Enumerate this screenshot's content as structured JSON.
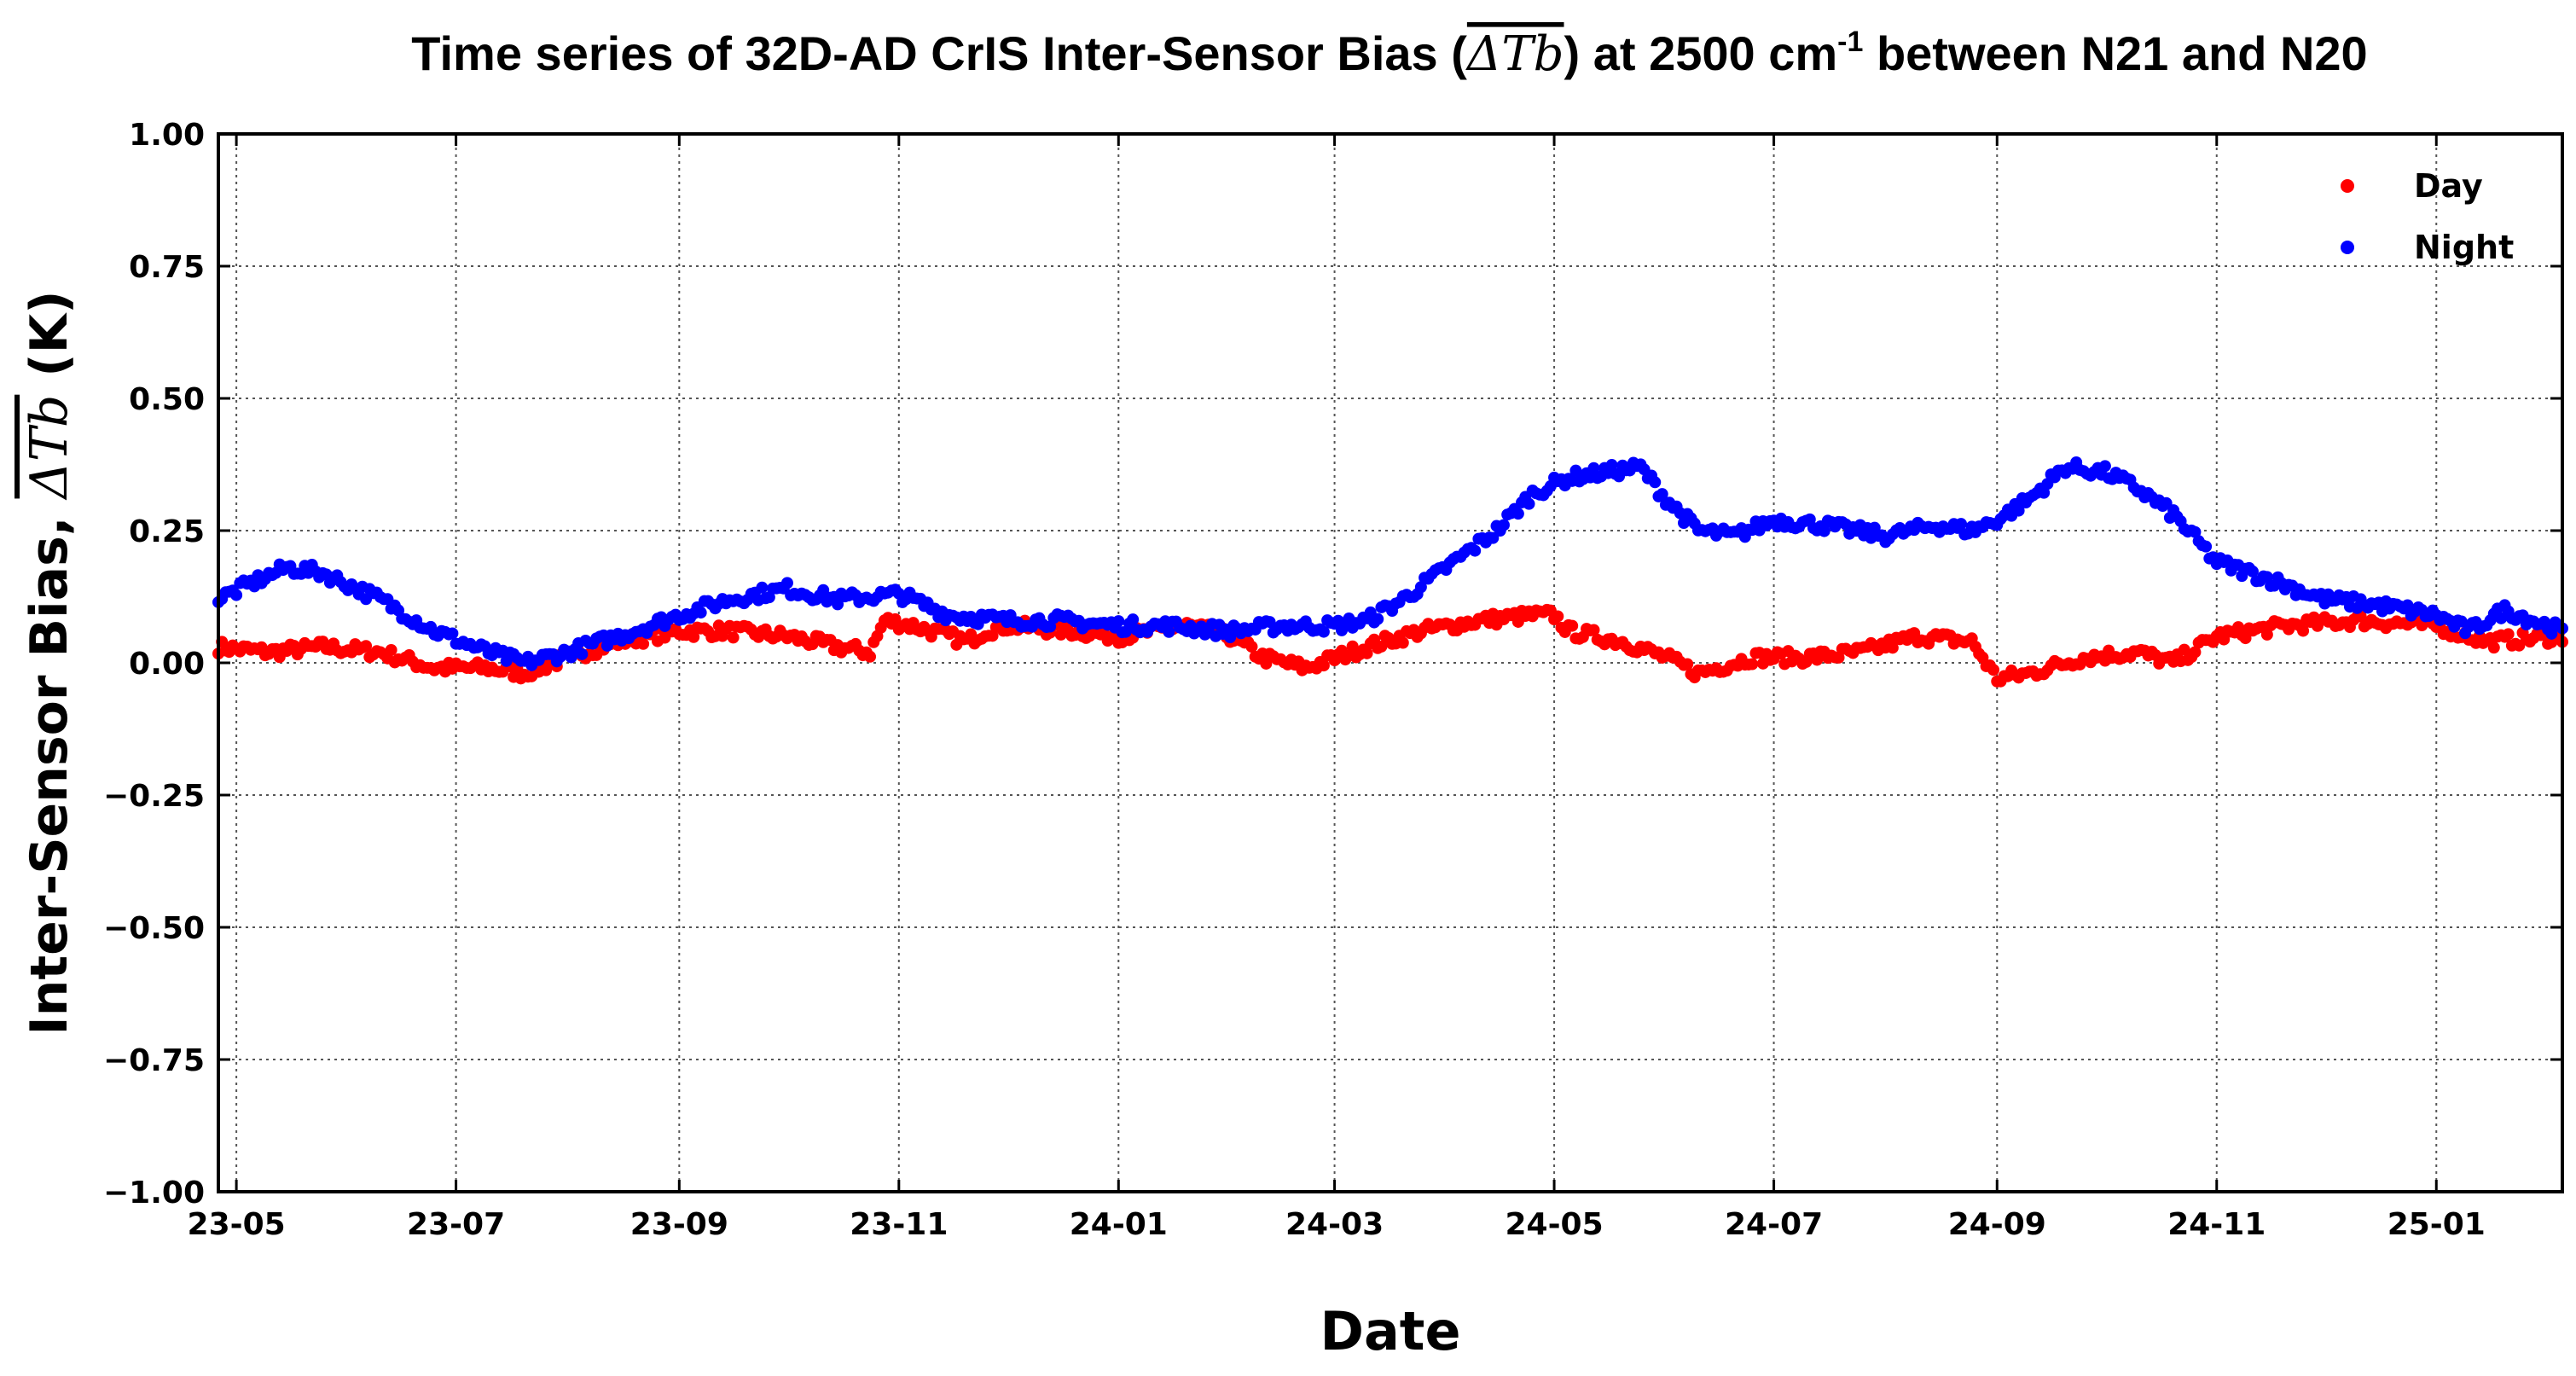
{
  "chart_data": {
    "type": "scatter",
    "title": {
      "prefix": "Time series of 32D-AD CrIS Inter-Sensor Bias (",
      "symbol": "ΔTb",
      "suffix_a": ") at 2500 cm",
      "superscript": "-1",
      "suffix_b": " between N21 and N20"
    },
    "xlabel": "Date",
    "ylabel": {
      "prefix": "Inter-Sensor Bias, ",
      "symbol": "ΔTb",
      "suffix": " (K)"
    },
    "x_range": [
      "2023-04-26",
      "2025-02-05"
    ],
    "ylim": [
      -1.0,
      1.0
    ],
    "x_ticks": [
      {
        "date": "2023-05-01",
        "label": "23-05"
      },
      {
        "date": "2023-07-01",
        "label": "23-07"
      },
      {
        "date": "2023-09-01",
        "label": "23-09"
      },
      {
        "date": "2023-11-01",
        "label": "23-11"
      },
      {
        "date": "2024-01-01",
        "label": "24-01"
      },
      {
        "date": "2024-03-01",
        "label": "24-03"
      },
      {
        "date": "2024-05-01",
        "label": "24-05"
      },
      {
        "date": "2024-07-01",
        "label": "24-07"
      },
      {
        "date": "2024-09-01",
        "label": "24-09"
      },
      {
        "date": "2024-11-01",
        "label": "24-11"
      },
      {
        "date": "2025-01-01",
        "label": "25-01"
      }
    ],
    "y_ticks": [
      {
        "value": 1.0,
        "label": "1.00"
      },
      {
        "value": 0.75,
        "label": "0.75"
      },
      {
        "value": 0.5,
        "label": "0.50"
      },
      {
        "value": 0.25,
        "label": "0.25"
      },
      {
        "value": 0.0,
        "label": "0.00"
      },
      {
        "value": -0.25,
        "label": "−0.25"
      },
      {
        "value": -0.5,
        "label": "−0.50"
      },
      {
        "value": -0.75,
        "label": "−0.75"
      },
      {
        "value": -1.0,
        "label": "−1.00"
      }
    ],
    "grid": true,
    "legend": {
      "position": "top-right"
    },
    "series": [
      {
        "name": "Day",
        "color": "#ff0000",
        "points": [
          [
            "2023-04-26",
            0.03
          ],
          [
            "2023-05-10",
            0.02
          ],
          [
            "2023-05-25",
            0.03
          ],
          [
            "2023-06-10",
            0.02
          ],
          [
            "2023-06-25",
            -0.01
          ],
          [
            "2023-07-10",
            -0.01
          ],
          [
            "2023-07-20",
            -0.02
          ],
          [
            "2023-08-01",
            0.01
          ],
          [
            "2023-08-15",
            0.04
          ],
          [
            "2023-09-01",
            0.06
          ],
          [
            "2023-09-15",
            0.06
          ],
          [
            "2023-10-01",
            0.05
          ],
          [
            "2023-10-15",
            0.03
          ],
          [
            "2023-10-24",
            0.02
          ],
          [
            "2023-10-28",
            0.08
          ],
          [
            "2023-11-05",
            0.07
          ],
          [
            "2023-11-20",
            0.04
          ],
          [
            "2023-11-25",
            0.06
          ],
          [
            "2023-12-01",
            0.07
          ],
          [
            "2023-12-20",
            0.06
          ],
          [
            "2024-01-01",
            0.05
          ],
          [
            "2024-01-20",
            0.07
          ],
          [
            "2024-02-01",
            0.05
          ],
          [
            "2024-02-10",
            0.01
          ],
          [
            "2024-02-22",
            -0.01
          ],
          [
            "2024-03-10",
            0.03
          ],
          [
            "2024-03-25",
            0.06
          ],
          [
            "2024-04-10",
            0.08
          ],
          [
            "2024-04-25",
            0.09
          ],
          [
            "2024-05-01",
            0.09
          ],
          [
            "2024-05-05",
            0.06
          ],
          [
            "2024-05-20",
            0.04
          ],
          [
            "2024-06-01",
            0.01
          ],
          [
            "2024-06-10",
            -0.02
          ],
          [
            "2024-06-25",
            0.01
          ],
          [
            "2024-07-10",
            0.01
          ],
          [
            "2024-07-25",
            0.02
          ],
          [
            "2024-08-10",
            0.05
          ],
          [
            "2024-08-25",
            0.04
          ],
          [
            "2024-09-01",
            -0.03
          ],
          [
            "2024-09-10",
            -0.02
          ],
          [
            "2024-09-25",
            0.01
          ],
          [
            "2024-10-10",
            0.02
          ],
          [
            "2024-10-20",
            0.0
          ],
          [
            "2024-11-01",
            0.05
          ],
          [
            "2024-11-20",
            0.07
          ],
          [
            "2024-12-10",
            0.08
          ],
          [
            "2025-01-01",
            0.07
          ],
          [
            "2025-01-15",
            0.04
          ],
          [
            "2025-02-05",
            0.05
          ]
        ]
      },
      {
        "name": "Night",
        "color": "#0000ff",
        "points": [
          [
            "2023-04-26",
            0.12
          ],
          [
            "2023-05-05",
            0.15
          ],
          [
            "2023-05-15",
            0.18
          ],
          [
            "2023-05-25",
            0.17
          ],
          [
            "2023-06-10",
            0.12
          ],
          [
            "2023-06-25",
            0.06
          ],
          [
            "2023-07-10",
            0.02
          ],
          [
            "2023-07-20",
            0.0
          ],
          [
            "2023-08-01",
            0.02
          ],
          [
            "2023-08-15",
            0.05
          ],
          [
            "2023-09-01",
            0.09
          ],
          [
            "2023-09-15",
            0.12
          ],
          [
            "2023-10-01",
            0.14
          ],
          [
            "2023-10-15",
            0.12
          ],
          [
            "2023-11-01",
            0.13
          ],
          [
            "2023-11-15",
            0.09
          ],
          [
            "2023-12-01",
            0.08
          ],
          [
            "2023-12-15",
            0.08
          ],
          [
            "2024-01-01",
            0.07
          ],
          [
            "2024-01-15",
            0.07
          ],
          [
            "2024-02-01",
            0.06
          ],
          [
            "2024-02-15",
            0.07
          ],
          [
            "2024-03-01",
            0.07
          ],
          [
            "2024-03-10",
            0.08
          ],
          [
            "2024-03-20",
            0.12
          ],
          [
            "2024-04-01",
            0.18
          ],
          [
            "2024-04-15",
            0.25
          ],
          [
            "2024-04-25",
            0.32
          ],
          [
            "2024-05-05",
            0.35
          ],
          [
            "2024-05-15",
            0.36
          ],
          [
            "2024-05-25",
            0.37
          ],
          [
            "2024-06-01",
            0.31
          ],
          [
            "2024-06-10",
            0.25
          ],
          [
            "2024-06-20",
            0.24
          ],
          [
            "2024-07-01",
            0.27
          ],
          [
            "2024-07-15",
            0.26
          ],
          [
            "2024-08-01",
            0.24
          ],
          [
            "2024-08-15",
            0.26
          ],
          [
            "2024-08-25",
            0.25
          ],
          [
            "2024-09-01",
            0.27
          ],
          [
            "2024-09-10",
            0.31
          ],
          [
            "2024-09-20",
            0.37
          ],
          [
            "2024-10-01",
            0.36
          ],
          [
            "2024-10-10",
            0.33
          ],
          [
            "2024-10-20",
            0.28
          ],
          [
            "2024-11-01",
            0.19
          ],
          [
            "2024-11-15",
            0.16
          ],
          [
            "2024-12-01",
            0.12
          ],
          [
            "2024-12-15",
            0.11
          ],
          [
            "2025-01-01",
            0.09
          ],
          [
            "2025-01-10",
            0.06
          ],
          [
            "2025-01-20",
            0.1
          ],
          [
            "2025-02-05",
            0.06
          ]
        ]
      }
    ]
  }
}
